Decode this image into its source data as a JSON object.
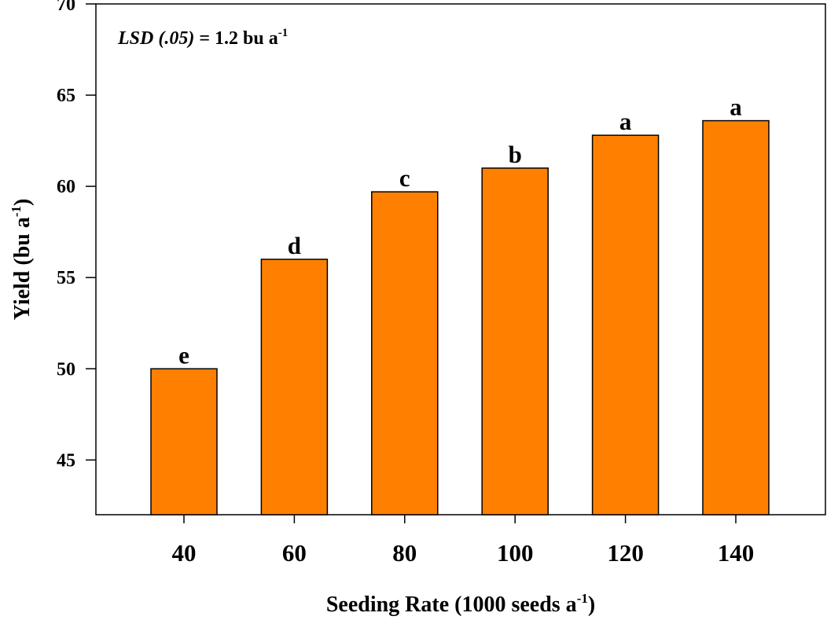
{
  "chart_data": {
    "type": "bar",
    "categories": [
      "40",
      "60",
      "80",
      "100",
      "120",
      "140"
    ],
    "values": [
      50.0,
      56.0,
      59.7,
      61.0,
      62.8,
      63.6
    ],
    "bar_labels": [
      "e",
      "d",
      "c",
      "b",
      "a",
      "a"
    ],
    "xlabel": {
      "text": "Seeding Rate (1000 seeds a",
      "sup": "-1",
      "suffix": ")"
    },
    "ylabel": {
      "text": "Yield (bu a",
      "sup": "-1",
      "suffix": ")"
    },
    "annotation": {
      "italic": "LSD (.05)",
      "text": " = 1.2 bu a",
      "sup": "-1"
    },
    "yticks": [
      45,
      50,
      55,
      60,
      65,
      70
    ],
    "ylim": [
      42,
      70
    ],
    "bar_color": "#FF8000",
    "grid": false
  }
}
